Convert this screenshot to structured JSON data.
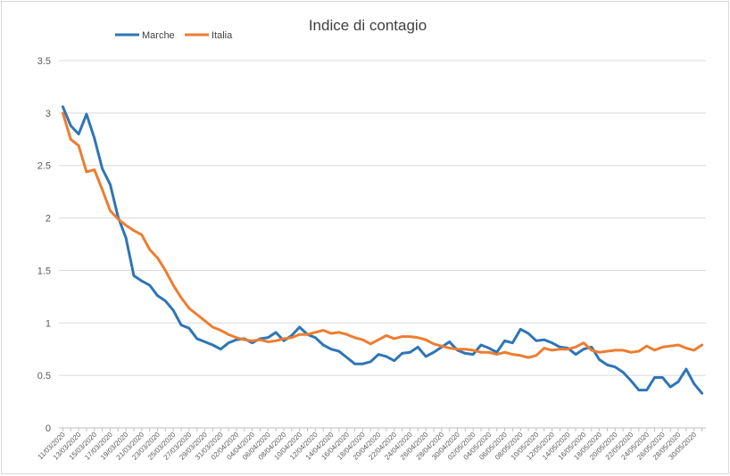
{
  "chart_data": {
    "type": "line",
    "title": "Indice di contagio",
    "xlabel": "",
    "ylabel": "",
    "ylim": [
      0,
      3.5
    ],
    "yticks": [
      "0",
      "0.5",
      "1",
      "1.5",
      "2",
      "2.5",
      "3",
      "3.5"
    ],
    "grid": true,
    "legend_position": "top-left",
    "x": [
      "11/03/2020",
      "12/03/2020",
      "13/03/2020",
      "14/03/2020",
      "15/03/2020",
      "16/03/2020",
      "17/03/2020",
      "18/03/2020",
      "19/03/2020",
      "20/03/2020",
      "21/03/2020",
      "22/03/2020",
      "23/03/2020",
      "24/03/2020",
      "25/03/2020",
      "26/03/2020",
      "27/03/2020",
      "28/03/2020",
      "29/03/2020",
      "30/03/2020",
      "31/03/2020",
      "01/04/2020",
      "02/04/2020",
      "03/04/2020",
      "04/04/2020",
      "05/04/2020",
      "06/04/2020",
      "07/04/2020",
      "08/04/2020",
      "09/04/2020",
      "10/04/2020",
      "11/04/2020",
      "12/04/2020",
      "13/04/2020",
      "14/04/2020",
      "15/04/2020",
      "16/04/2020",
      "17/04/2020",
      "18/04/2020",
      "19/04/2020",
      "20/04/2020",
      "21/04/2020",
      "22/04/2020",
      "23/04/2020",
      "24/04/2020",
      "25/04/2020",
      "26/04/2020",
      "27/04/2020",
      "28/04/2020",
      "29/04/2020",
      "30/04/2020",
      "01/05/2020",
      "02/05/2020",
      "03/05/2020",
      "04/05/2020",
      "05/05/2020",
      "06/05/2020",
      "07/05/2020",
      "08/05/2020",
      "09/05/2020",
      "10/05/2020",
      "11/05/2020",
      "12/05/2020",
      "13/05/2020",
      "14/05/2020",
      "15/05/2020",
      "16/05/2020",
      "17/05/2020",
      "18/05/2020",
      "19/05/2020",
      "20/05/2020",
      "21/05/2020",
      "22/05/2020",
      "23/05/2020",
      "24/05/2020",
      "25/05/2020",
      "26/05/2020",
      "27/05/2020",
      "28/05/2020",
      "29/05/2020",
      "30/05/2020",
      "31/05/2020"
    ],
    "x_tick_labels": [
      "11/03/2020",
      "13/03/2020",
      "15/03/2020",
      "17/03/2020",
      "19/03/2020",
      "21/03/2020",
      "23/03/2020",
      "25/03/2020",
      "27/03/2020",
      "29/03/2020",
      "31/03/2020",
      "02/04/2020",
      "04/04/2020",
      "06/04/2020",
      "08/04/2020",
      "10/04/2020",
      "12/04/2020",
      "14/04/2020",
      "16/04/2020",
      "18/04/2020",
      "20/04/2020",
      "22/04/2020",
      "24/04/2020",
      "26/04/2020",
      "28/04/2020",
      "30/04/2020",
      "02/05/2020",
      "04/05/2020",
      "06/05/2020",
      "08/05/2020",
      "10/05/2020",
      "12/05/2020",
      "14/05/2020",
      "16/05/2020",
      "18/05/2020",
      "20/05/2020",
      "22/05/2020",
      "24/05/2020",
      "26/05/2020",
      "28/05/2020",
      "30/05/2020"
    ],
    "series": [
      {
        "name": "Marche",
        "color": "#2e75b6",
        "values": [
          3.06,
          2.88,
          2.8,
          2.99,
          2.76,
          2.47,
          2.32,
          2.01,
          1.81,
          1.45,
          1.4,
          1.36,
          1.26,
          1.21,
          1.12,
          0.98,
          0.95,
          0.85,
          0.82,
          0.79,
          0.75,
          0.81,
          0.84,
          0.85,
          0.81,
          0.85,
          0.86,
          0.91,
          0.83,
          0.88,
          0.96,
          0.89,
          0.86,
          0.79,
          0.75,
          0.73,
          0.67,
          0.61,
          0.61,
          0.63,
          0.7,
          0.68,
          0.64,
          0.71,
          0.72,
          0.77,
          0.68,
          0.72,
          0.77,
          0.82,
          0.74,
          0.71,
          0.7,
          0.79,
          0.76,
          0.72,
          0.83,
          0.81,
          0.94,
          0.9,
          0.83,
          0.84,
          0.81,
          0.77,
          0.76,
          0.7,
          0.75,
          0.77,
          0.65,
          0.6,
          0.58,
          0.53,
          0.45,
          0.36,
          0.36,
          0.48,
          0.48,
          0.39,
          0.44,
          0.56,
          0.42,
          0.33
        ]
      },
      {
        "name": "Italia",
        "color": "#ed7d31",
        "values": [
          3.0,
          2.75,
          2.69,
          2.44,
          2.46,
          2.27,
          2.07,
          1.99,
          1.93,
          1.88,
          1.84,
          1.7,
          1.62,
          1.5,
          1.36,
          1.24,
          1.14,
          1.08,
          1.02,
          0.96,
          0.93,
          0.89,
          0.86,
          0.84,
          0.83,
          0.84,
          0.82,
          0.83,
          0.85,
          0.86,
          0.89,
          0.89,
          0.91,
          0.93,
          0.9,
          0.91,
          0.89,
          0.86,
          0.84,
          0.8,
          0.84,
          0.88,
          0.85,
          0.87,
          0.87,
          0.86,
          0.84,
          0.8,
          0.78,
          0.76,
          0.75,
          0.75,
          0.74,
          0.72,
          0.72,
          0.7,
          0.72,
          0.7,
          0.69,
          0.67,
          0.69,
          0.76,
          0.74,
          0.75,
          0.75,
          0.77,
          0.81,
          0.74,
          0.72,
          0.73,
          0.74,
          0.74,
          0.72,
          0.73,
          0.78,
          0.74,
          0.77,
          0.78,
          0.79,
          0.76,
          0.74,
          0.79
        ]
      }
    ]
  }
}
